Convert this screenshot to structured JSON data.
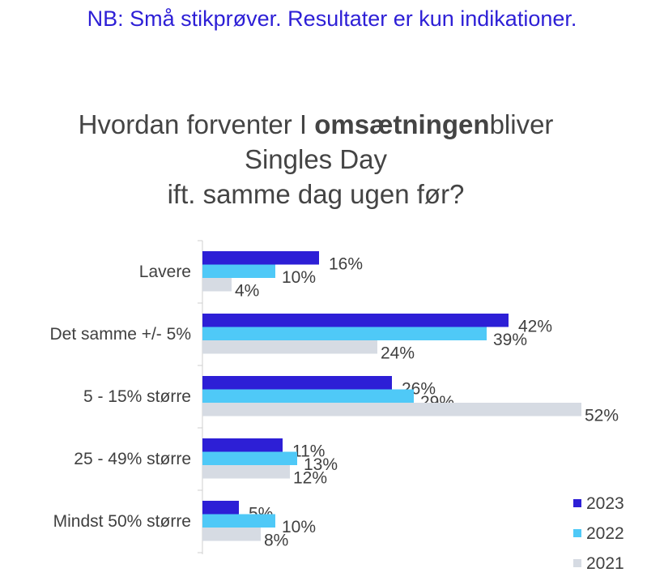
{
  "note": "NB: Små stikprøver. Resultater er kun indikationer.",
  "title": {
    "line1_before": "Hvordan forventer I ",
    "line1_bold": "omsætningen",
    "line1_after": "bliver",
    "line2": "Singles Day",
    "line3": "ift. samme dag ugen før?"
  },
  "chart_data": {
    "type": "bar",
    "orientation": "horizontal",
    "categories": [
      "Lavere",
      "Det samme +/- 5%",
      "5 - 15% større",
      "25 - 49% større",
      "Mindst 50% større"
    ],
    "series": [
      {
        "name": "2023",
        "color": "#2d1fd6",
        "values": [
          16,
          42,
          26,
          11,
          5
        ]
      },
      {
        "name": "2022",
        "color": "#4fc9f7",
        "values": [
          10,
          39,
          29,
          13,
          10
        ]
      },
      {
        "name": "2021",
        "color": "#d6dbe3",
        "values": [
          4,
          24,
          52,
          12,
          8
        ]
      }
    ],
    "value_suffix": "%",
    "legend_position": "bottom-right",
    "grid": false
  }
}
